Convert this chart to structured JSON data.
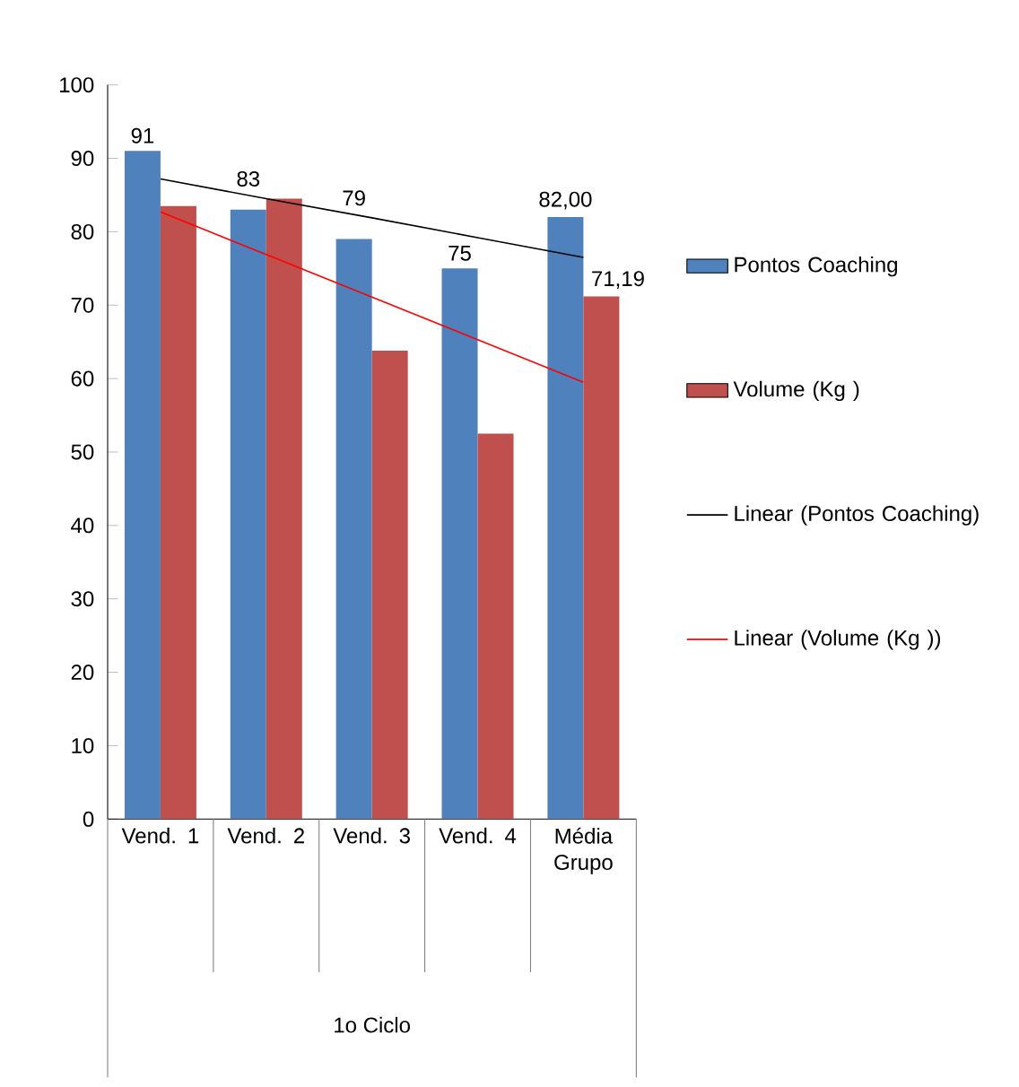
{
  "chart_data": {
    "type": "bar",
    "annotations": [
      "1o Ciclo"
    ],
    "categories": [
      "Vend. 1",
      "Vend. 2",
      "Vend. 3",
      "Vend. 4",
      "Média Grupo"
    ],
    "series": [
      {
        "name": "Pontos Coaching",
        "color": "#4f81bd",
        "values": [
          91,
          83,
          79,
          75,
          82
        ],
        "value_labels": [
          "91",
          "83",
          "79",
          "75",
          "82,00"
        ]
      },
      {
        "name": "Volume (Kg )",
        "color": "#c0504d",
        "values": [
          83.5,
          84.5,
          63.8,
          52.5,
          71.19
        ],
        "value_labels": [
          null,
          null,
          null,
          null,
          "71,19"
        ]
      },
      {
        "name": "Linear (Pontos Coaching)",
        "type": "line",
        "color": "#000000",
        "values": [
          87.2,
          84.5,
          81.9,
          79.2,
          76.5
        ]
      },
      {
        "name": "Linear (Volume (Kg ))",
        "type": "line",
        "color": "#ff0000",
        "values": [
          82.7,
          76.9,
          71.1,
          65.3,
          59.5
        ]
      }
    ],
    "ylim": [
      0,
      100
    ],
    "yticks": [
      0,
      10,
      20,
      30,
      40,
      50,
      60,
      70,
      80,
      90,
      100
    ],
    "grid": false,
    "legend": "right"
  }
}
